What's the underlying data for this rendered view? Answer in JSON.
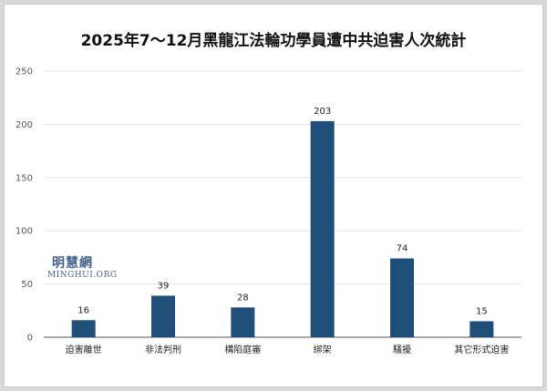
{
  "watermark": {
    "chinese": "明慧網",
    "latin": "MINGHUI.ORG"
  },
  "chart_data": {
    "type": "bar",
    "title": "2025年7～12月黑龍江法輪功學員遭中共迫害人次統計",
    "categories": [
      "迫害離世",
      "非法判刑",
      "構陷庭審",
      "綁架",
      "騷擾",
      "其它形式迫害"
    ],
    "values": [
      16,
      39,
      28,
      203,
      74,
      15
    ],
    "yticks": [
      0,
      50,
      100,
      150,
      200,
      250
    ],
    "ylim": [
      0,
      250
    ],
    "xlabel": "",
    "ylabel": "",
    "grid": true,
    "bar_color": "#1f4e79",
    "data_labels": true
  }
}
